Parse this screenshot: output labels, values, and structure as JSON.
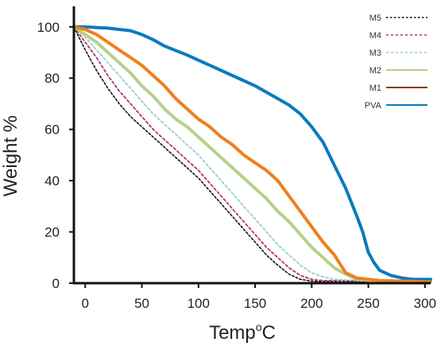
{
  "chart_data": {
    "type": "line",
    "title": "",
    "xlabel": "Temp",
    "xlabel_sup": "o",
    "xlabel_suffix": "C",
    "ylabel": "Weight %",
    "xlim": [
      -10,
      305
    ],
    "ylim": [
      0,
      108
    ],
    "xticks": [
      0,
      50,
      100,
      150,
      200,
      250,
      300
    ],
    "yticks": [
      0,
      20,
      40,
      60,
      80,
      100
    ],
    "grid": false,
    "legend_position": "top-right",
    "series": [
      {
        "name": "M5",
        "color": "#111111",
        "style": "dotted",
        "x": [
          -10,
          0,
          10,
          20,
          30,
          40,
          50,
          60,
          70,
          80,
          90,
          100,
          110,
          120,
          130,
          140,
          150,
          160,
          170,
          180,
          190,
          200,
          210,
          220,
          240,
          270,
          305
        ],
        "y": [
          100,
          91,
          83,
          76,
          70,
          65,
          61,
          57,
          53,
          49,
          45,
          41,
          36,
          31,
          26,
          21,
          16,
          11,
          7,
          3.5,
          1.5,
          0.8,
          0.6,
          0.6,
          0.6,
          0.6,
          0.6
        ]
      },
      {
        "name": "M4",
        "color": "#b5307a",
        "style": "dashed",
        "x": [
          -10,
          0,
          10,
          20,
          30,
          40,
          50,
          60,
          70,
          80,
          90,
          100,
          110,
          120,
          130,
          140,
          150,
          160,
          170,
          180,
          190,
          200,
          210,
          220,
          240,
          270,
          305
        ],
        "y": [
          100,
          94,
          88,
          81,
          75,
          70,
          65,
          60,
          56,
          52,
          48,
          44,
          39,
          34,
          29,
          24,
          19,
          14,
          10,
          6,
          3,
          1.5,
          1,
          1,
          1,
          1,
          1
        ]
      },
      {
        "name": "M3",
        "color": "#8fd3c7",
        "style": "dashed",
        "x": [
          -10,
          0,
          10,
          20,
          30,
          40,
          50,
          60,
          70,
          80,
          90,
          100,
          110,
          120,
          130,
          140,
          150,
          160,
          170,
          180,
          190,
          200,
          210,
          220,
          240,
          270,
          305
        ],
        "y": [
          100,
          96,
          91,
          86,
          81,
          76,
          71,
          66,
          62,
          58,
          54,
          50,
          45,
          40,
          35,
          30,
          25,
          20,
          15,
          11,
          7,
          4,
          2.5,
          1.5,
          1,
          1,
          1
        ]
      },
      {
        "name": "M2",
        "color": "#b8cf8a",
        "style": "solid",
        "x": [
          -10,
          0,
          10,
          20,
          30,
          40,
          50,
          60,
          70,
          80,
          90,
          100,
          110,
          120,
          130,
          140,
          150,
          160,
          170,
          180,
          190,
          200,
          210,
          220,
          230,
          240,
          260,
          305
        ],
        "y": [
          100,
          97,
          94,
          90,
          86,
          82,
          77,
          73,
          68,
          64,
          61,
          57,
          53,
          49,
          45,
          41,
          37,
          33,
          28,
          24,
          19,
          14,
          10,
          6,
          3.5,
          1.5,
          0.8,
          0.5
        ]
      },
      {
        "name": "M1",
        "color": "#8b3a1a",
        "style": "solid",
        "x": [
          -10,
          0,
          10,
          20,
          30,
          40,
          50,
          60,
          70,
          80,
          90,
          100,
          110,
          120,
          130,
          140,
          150,
          160,
          170,
          180,
          190,
          200,
          210,
          220,
          230,
          240,
          260,
          305
        ],
        "y": [
          100,
          99,
          97,
          94,
          91,
          88,
          85,
          81,
          77,
          72,
          68,
          64,
          61,
          57,
          54,
          50,
          47,
          44,
          40,
          34,
          28,
          22,
          16,
          11,
          4,
          2,
          1,
          0.5
        ]
      },
      {
        "name": "PVA",
        "color": "#0a7abf",
        "style": "solid",
        "x": [
          -10,
          0,
          20,
          40,
          50,
          60,
          70,
          90,
          110,
          130,
          150,
          170,
          180,
          190,
          200,
          210,
          220,
          230,
          240,
          245,
          250,
          255,
          260,
          270,
          280,
          290,
          300,
          305
        ],
        "y": [
          100,
          100,
          99.5,
          98.5,
          97,
          95,
          92.5,
          89,
          85,
          81,
          77,
          72,
          69.5,
          66,
          61,
          55,
          46,
          37,
          26,
          20,
          12,
          8,
          5,
          3,
          2,
          1.5,
          1.5,
          1.5
        ]
      }
    ]
  }
}
